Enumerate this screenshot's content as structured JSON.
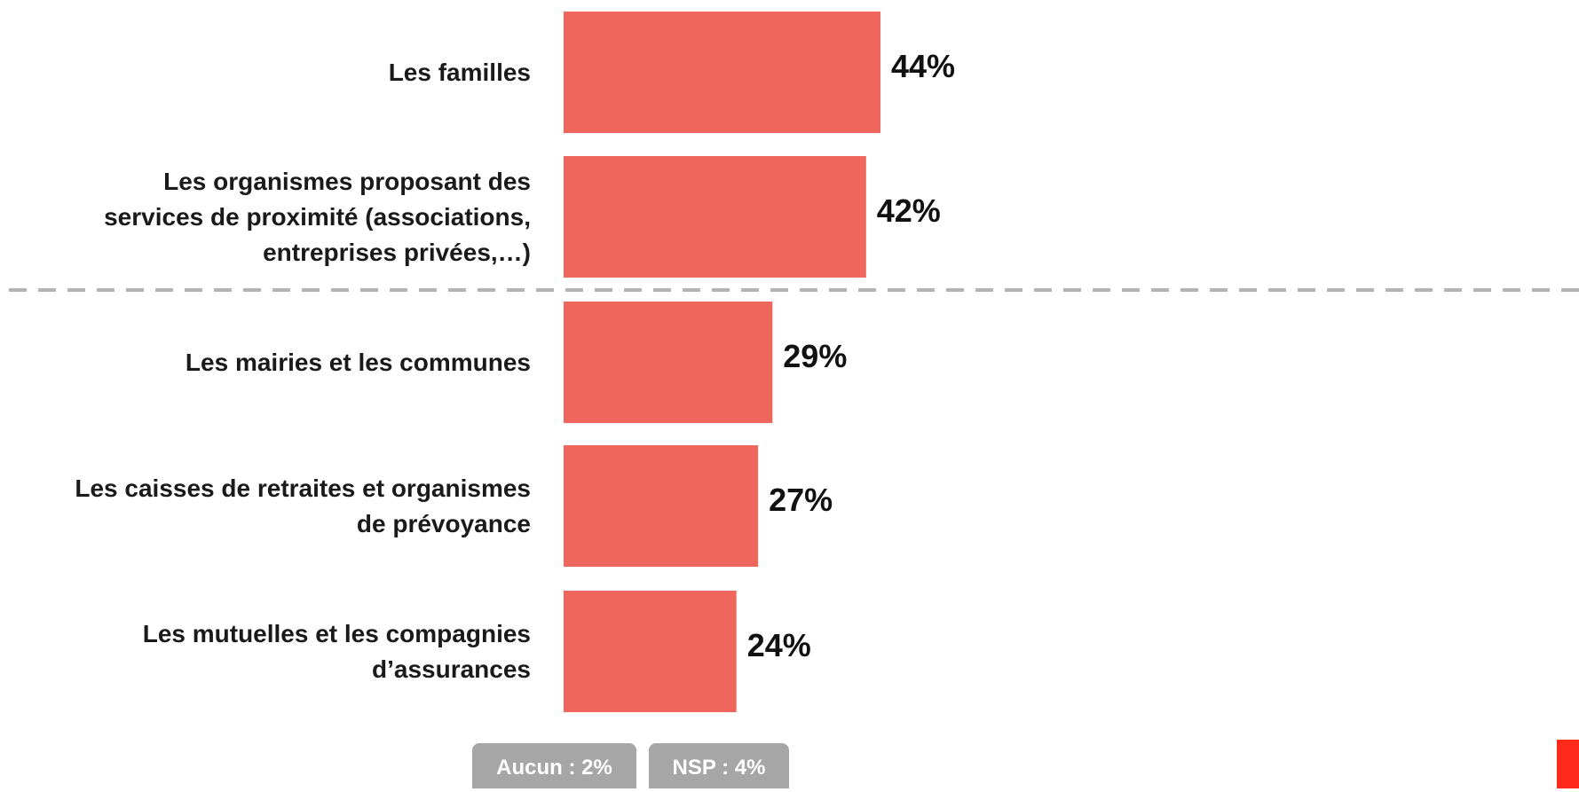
{
  "chart_data": {
    "type": "bar",
    "orientation": "horizontal",
    "categories": [
      "Les familles",
      "Les organismes proposant des services de proximité (associations, entreprises privées,…)",
      "Les mairies et les communes",
      "Les caisses de retraites et organismes de prévoyance",
      "Les mutuelles et les compagnies d’assurances"
    ],
    "category_lines": [
      [
        "Les familles"
      ],
      [
        "Les organismes proposant des",
        "services de proximité (associations,",
        "entreprises privées,…)"
      ],
      [
        "Les mairies et les communes"
      ],
      [
        "Les caisses de retraites et organismes",
        "de prévoyance"
      ],
      [
        "Les mutuelles et les compagnies",
        "d’assurances"
      ]
    ],
    "values": [
      44,
      42,
      29,
      27,
      24
    ],
    "value_labels": [
      "44%",
      "42%",
      "29%",
      "27%",
      "24%"
    ],
    "bar_color": "#ee665c",
    "divider": {
      "style": "dashed",
      "after_index": 1,
      "color": "#b3b3b3"
    },
    "grid": false
  },
  "badges": [
    {
      "text": "Aucun : 2%"
    },
    {
      "text": "NSP : 4%"
    }
  ],
  "colors": {
    "badge_bg": "#a6a6a6",
    "corner_mark": "#ff2a1a"
  }
}
